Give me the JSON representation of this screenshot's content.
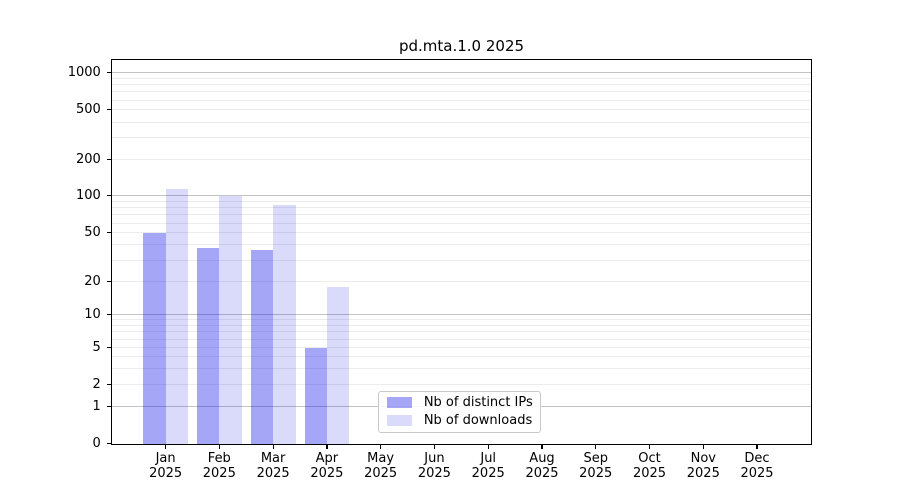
{
  "chart_data": {
    "type": "bar",
    "title": "pd.mta.1.0 2025",
    "categories": [
      "Jan 2025",
      "Feb 2025",
      "Mar 2025",
      "Apr 2025",
      "May 2025",
      "Jun 2025",
      "Jul 2025",
      "Aug 2025",
      "Sep 2025",
      "Oct 2025",
      "Nov 2025",
      "Dec 2025"
    ],
    "series": [
      {
        "name": "Nb of distinct IPs",
        "color": "rgba(8,8,230,0.36)",
        "values": [
          50,
          38,
          36,
          5,
          0,
          0,
          0,
          0,
          0,
          0,
          0,
          0
        ]
      },
      {
        "name": "Nb of downloads",
        "color": "rgba(8,8,230,0.15)",
        "values": [
          115,
          100,
          85,
          18,
          0,
          0,
          0,
          0,
          0,
          0,
          0,
          0
        ]
      }
    ],
    "xlabel": "",
    "ylabel": "",
    "yscale": "symlog",
    "ylim": [
      0,
      1300
    ],
    "yticks": [
      0,
      1,
      2,
      5,
      10,
      20,
      50,
      100,
      200,
      500,
      1000
    ],
    "major_grid_values": [
      1,
      10,
      100,
      1000
    ],
    "minor_grid_values": [
      2,
      3,
      4,
      5,
      6,
      7,
      8,
      9,
      20,
      30,
      40,
      50,
      60,
      70,
      80,
      90,
      200,
      300,
      400,
      500,
      600,
      700,
      800,
      900
    ],
    "grid": true,
    "legend_position": "inside-bottom-center",
    "colors": {
      "bar_distinct_ips": "rgba(8,8,230,0.36)",
      "bar_downloads": "rgba(8,8,230,0.15)",
      "major_grid": "#c3c3c3",
      "minor_grid": "#ececec",
      "spine": "#000000",
      "background": "#ffffff"
    }
  }
}
